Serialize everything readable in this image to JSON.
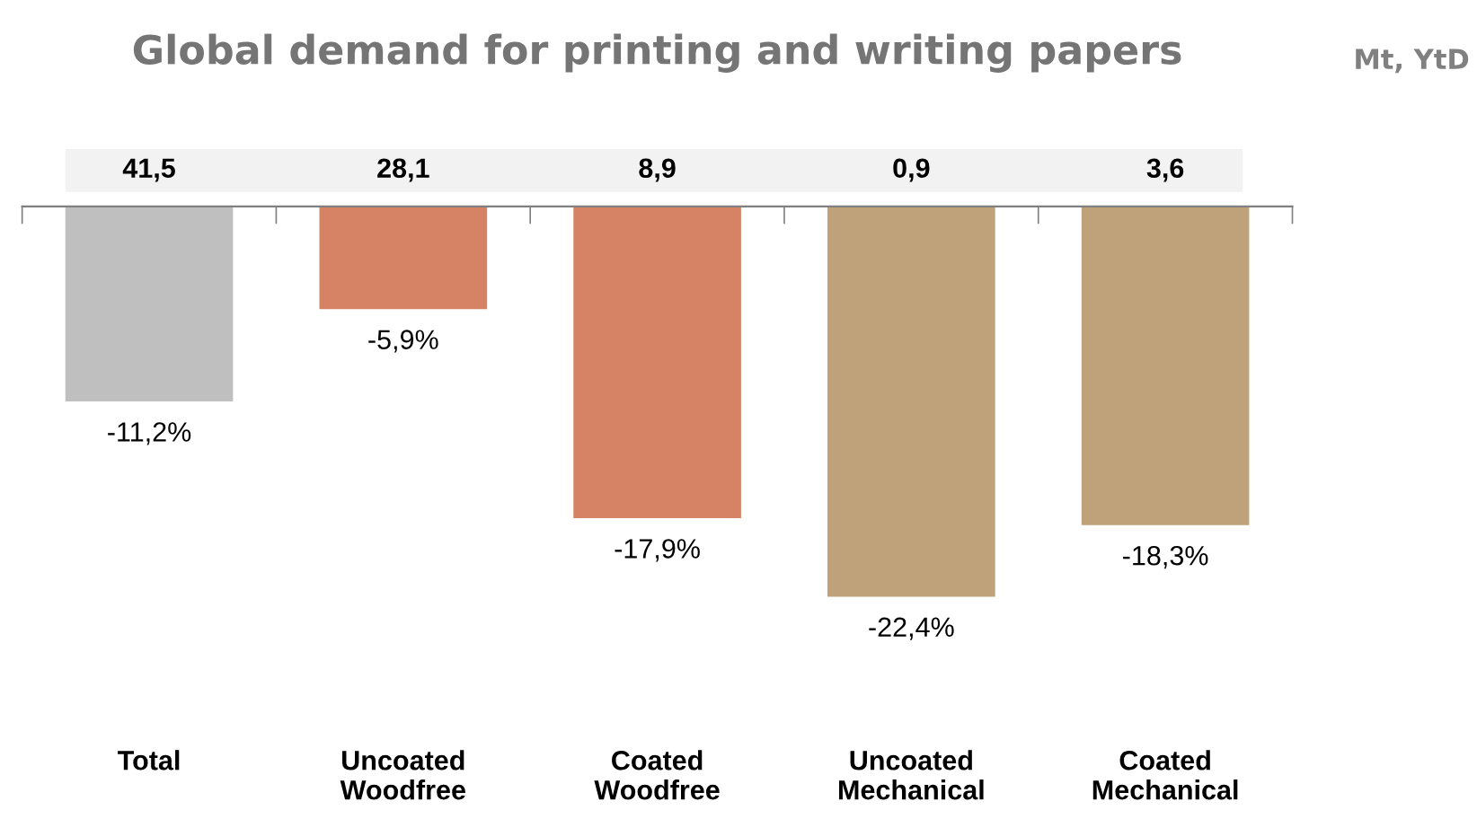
{
  "chart_data": {
    "type": "bar",
    "title": "Global demand for printing and writing papers",
    "categories": [
      "Total",
      "Uncoated\nWoodfree",
      "Coated\nWoodfree",
      "Uncoated\nMechanical",
      "Coated\nMechanical"
    ],
    "values": [
      -11.2,
      -5.9,
      -17.9,
      -22.4,
      -18.3
    ],
    "colors": [
      "#bfbfbf",
      "#d58265",
      "#d58265",
      "#bfa27a",
      "#bfa27a"
    ],
    "value_labels": [
      "-11,2%",
      "-5,9%",
      "-17,9%",
      "-22,4%",
      "-18,3%"
    ],
    "tick_labels": "x",
    "annotations": [
      "41,5",
      "28,1",
      "8,9",
      "0,9",
      "3,6",
      "Mt, YtD"
    ],
    "grid": false,
    "legend": false
  }
}
